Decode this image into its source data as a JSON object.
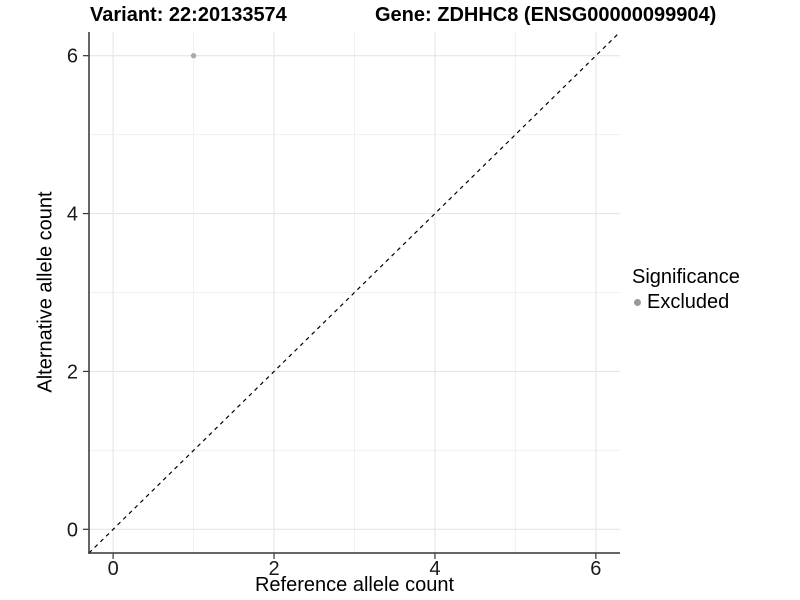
{
  "chart_data": {
    "type": "scatter",
    "title_left": "Variant: 22:20133574",
    "title_right": "Gene: ZDHHC8 (ENSG00000099904)",
    "xlabel": "Reference allele count",
    "ylabel": "Alternative allele count",
    "xlim": [
      -0.3,
      6.3
    ],
    "ylim": [
      -0.3,
      6.3
    ],
    "x_ticks": [
      0,
      2,
      4,
      6
    ],
    "y_ticks": [
      0,
      2,
      4,
      6
    ],
    "x_minor_ticks": [
      1,
      3,
      5
    ],
    "y_minor_ticks": [
      1,
      3,
      5
    ],
    "grid": "major+minor",
    "legend_position": "right",
    "reference_line": {
      "kind": "identity y=x",
      "style": "dashed",
      "color": "#000000"
    },
    "series": [
      {
        "name": "Excluded",
        "marker": "circle",
        "color": "#aaaaaa",
        "points": [
          {
            "x": 1,
            "y": 6
          }
        ]
      }
    ],
    "legend": {
      "title": "Significance",
      "entries": [
        {
          "label": "Excluded",
          "color": "#999999",
          "marker": "circle"
        }
      ]
    }
  },
  "colors": {
    "background": "#ffffff",
    "grid_major": "#e6e6e6",
    "grid_minor": "#f0f0f0",
    "axis_line": "#333333",
    "tick_text": "#1a1a1a",
    "title_text": "#000000"
  }
}
